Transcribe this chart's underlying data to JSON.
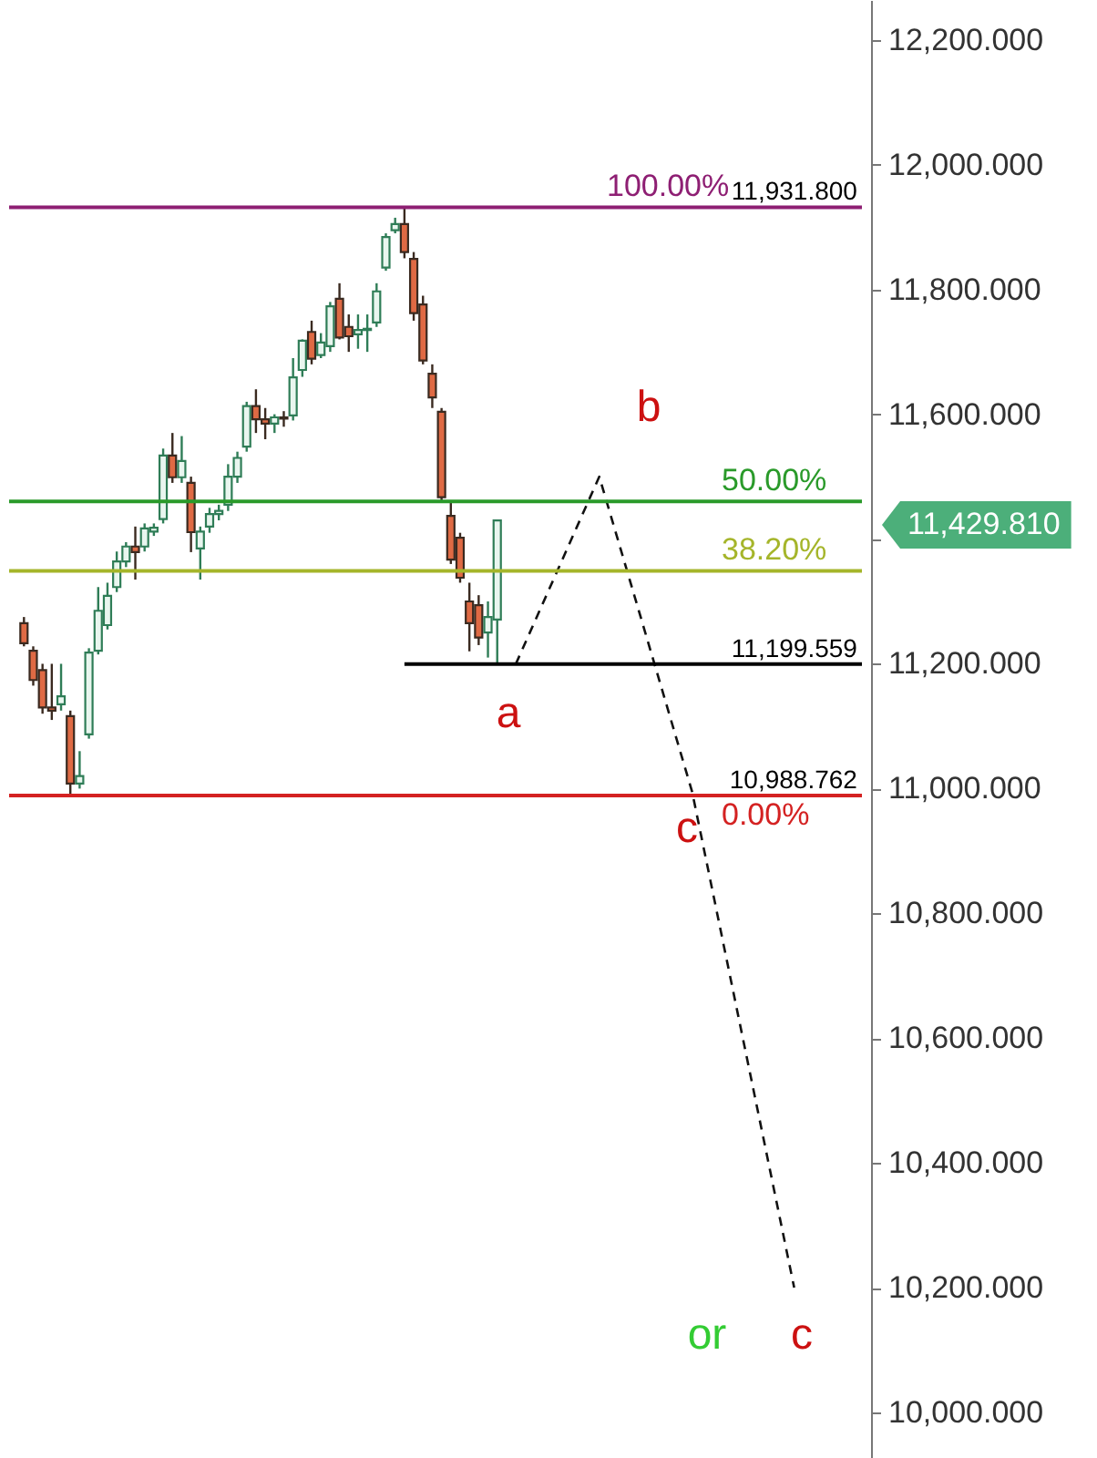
{
  "chart_data": {
    "type": "candlestick",
    "categories": [
      null,
      null,
      null,
      null,
      null,
      null,
      null,
      null,
      null,
      null,
      null,
      null,
      null,
      null,
      null,
      null,
      null,
      null,
      null,
      null,
      null,
      null,
      null,
      null,
      null,
      null,
      null,
      null,
      null,
      null,
      null,
      null,
      null,
      null,
      null,
      null,
      null,
      null,
      null,
      null,
      null,
      null,
      null,
      null,
      null,
      null,
      null,
      null,
      null,
      null,
      null,
      null,
      null,
      null,
      null,
      null,
      null,
      null,
      null,
      null,
      null,
      null,
      null,
      null,
      null,
      null,
      null,
      null,
      null,
      null,
      null,
      null,
      null,
      null,
      null,
      null,
      null,
      null,
      null,
      null,
      null,
      null,
      null,
      null,
      null,
      null,
      null,
      null,
      null,
      null,
      null
    ],
    "ohlc": [
      [
        11265,
        11275,
        11228,
        11233
      ],
      [
        11221,
        11228,
        11165,
        11174
      ],
      [
        11190,
        11200,
        11120,
        11130
      ],
      [
        11130,
        11200,
        11110,
        11125
      ],
      [
        11135,
        11200,
        11125,
        11148
      ],
      [
        11116,
        11125,
        10990,
        11008
      ],
      [
        11008,
        11060,
        11000,
        11020
      ],
      [
        11087,
        11225,
        11080,
        11218
      ],
      [
        11221,
        11323,
        11215,
        11285
      ],
      [
        11262,
        11330,
        11255,
        11309
      ],
      [
        11323,
        11380,
        11315,
        11364
      ],
      [
        11364,
        11395,
        11355,
        11388
      ],
      [
        11388,
        11420,
        11335,
        11379
      ],
      [
        11388,
        11425,
        11380,
        11417
      ],
      [
        11412,
        11425,
        11405,
        11418
      ],
      [
        11432,
        11545,
        11425,
        11534
      ],
      [
        11534,
        11570,
        11490,
        11499
      ],
      [
        11499,
        11565,
        11490,
        11525
      ],
      [
        11490,
        11500,
        11379,
        11411
      ],
      [
        11385,
        11420,
        11335,
        11412
      ],
      [
        11420,
        11450,
        11410,
        11440
      ],
      [
        11440,
        11455,
        11430,
        11445
      ],
      [
        11455,
        11520,
        11445,
        11500
      ],
      [
        11500,
        11540,
        11490,
        11530
      ],
      [
        11548,
        11620,
        11540,
        11613
      ],
      [
        11613,
        11640,
        11570,
        11592
      ],
      [
        11592,
        11610,
        11560,
        11585
      ],
      [
        11585,
        11600,
        11570,
        11595
      ],
      [
        11595,
        11605,
        11580,
        11593
      ],
      [
        11598,
        11690,
        11590,
        11659
      ],
      [
        11671,
        11720,
        11660,
        11718
      ],
      [
        11732,
        11750,
        11680,
        11689
      ],
      [
        11695,
        11730,
        11690,
        11715
      ],
      [
        11709,
        11780,
        11700,
        11773
      ],
      [
        11785,
        11810,
        11720,
        11723
      ],
      [
        11740,
        11760,
        11700,
        11725
      ],
      [
        11728,
        11760,
        11705,
        11735
      ],
      [
        11735,
        11760,
        11700,
        11737
      ],
      [
        11747,
        11810,
        11740,
        11797
      ],
      [
        11835,
        11890,
        11830,
        11884
      ],
      [
        11895,
        11915,
        11890,
        11905
      ],
      [
        11905,
        11931.8,
        11850,
        11860
      ],
      [
        11849,
        11860,
        11750,
        11762
      ],
      [
        11776,
        11790,
        11680,
        11686
      ],
      [
        11665,
        11680,
        11610,
        11627
      ],
      [
        11604,
        11610,
        11460,
        11467
      ],
      [
        11437,
        11460,
        11360,
        11367
      ],
      [
        11402,
        11410,
        11330,
        11338
      ],
      [
        11300,
        11330,
        11220,
        11265
      ],
      [
        11294,
        11310,
        11230,
        11242
      ],
      [
        11250,
        11300,
        11210,
        11275
      ],
      [
        11271,
        11430,
        11199.559,
        11429.81
      ],
      null,
      null,
      null,
      null,
      null,
      null,
      null,
      null,
      null,
      null,
      null,
      null,
      null,
      null,
      null,
      null,
      null,
      null,
      null,
      null,
      null,
      null,
      null,
      null,
      null,
      null,
      null,
      null,
      null,
      null,
      null,
      null,
      null,
      null,
      null,
      null,
      null,
      null,
      null
    ],
    "series": [
      {
        "type": "line",
        "line_style": "dashed",
        "color": "#111111",
        "values": [
          null,
          null,
          null,
          null,
          null,
          null,
          null,
          null,
          null,
          null,
          null,
          null,
          null,
          null,
          null,
          null,
          null,
          null,
          null,
          null,
          null,
          null,
          null,
          null,
          null,
          null,
          null,
          null,
          null,
          null,
          null,
          null,
          null,
          null,
          null,
          null,
          null,
          null,
          null,
          null,
          null,
          null,
          null,
          null,
          null,
          null,
          null,
          null,
          null,
          null,
          null,
          null,
          null,
          11199.559,
          null,
          null,
          null,
          null,
          null,
          null,
          null,
          null,
          11500,
          null,
          null,
          null,
          null,
          null,
          null,
          null,
          null,
          null,
          10995,
          null,
          null,
          null,
          null,
          null,
          null,
          null,
          null,
          null,
          null,
          10200,
          null,
          null,
          null,
          null,
          null,
          null,
          null
        ]
      }
    ],
    "ylim": [
      9927,
      12264
    ],
    "yticks": [
      {
        "value": 10000,
        "label": "10,000.000"
      },
      {
        "value": 10200,
        "label": "10,200.000"
      },
      {
        "value": 10400,
        "label": "10,400.000"
      },
      {
        "value": 10600,
        "label": "10,600.000"
      },
      {
        "value": 10800,
        "label": "10,800.000"
      },
      {
        "value": 11000,
        "label": "11,000.000"
      },
      {
        "value": 11200,
        "label": "11,200.000"
      },
      {
        "value": 11400,
        "label": null
      },
      {
        "value": 11600,
        "label": "11,600.000"
      },
      {
        "value": 11800,
        "label": "11,800.000"
      },
      {
        "value": 12000,
        "label": "12,000.000"
      },
      {
        "value": 12200,
        "label": "12,200.000"
      }
    ],
    "ref_lines": [
      {
        "axis": "y",
        "value": 11931.8,
        "label": "11,931.800",
        "color": "#8e1f73"
      },
      {
        "axis": "y",
        "value": 11460.28,
        "color": "#2a9a2a"
      },
      {
        "axis": "y",
        "value": 11348.99,
        "color": "#a5b52a"
      },
      {
        "axis": "y",
        "value": 10988.762,
        "label": "10,988.762",
        "color": "#d42222"
      },
      {
        "axis": "y",
        "value": 11199.559,
        "label": "11,199.559",
        "color": "#000000"
      }
    ],
    "annotations": [
      "100.00%",
      "50.00%",
      "38.20%",
      "0.00%",
      "11,429.810",
      "a",
      "b",
      "c",
      "or",
      "c"
    ]
  }
}
